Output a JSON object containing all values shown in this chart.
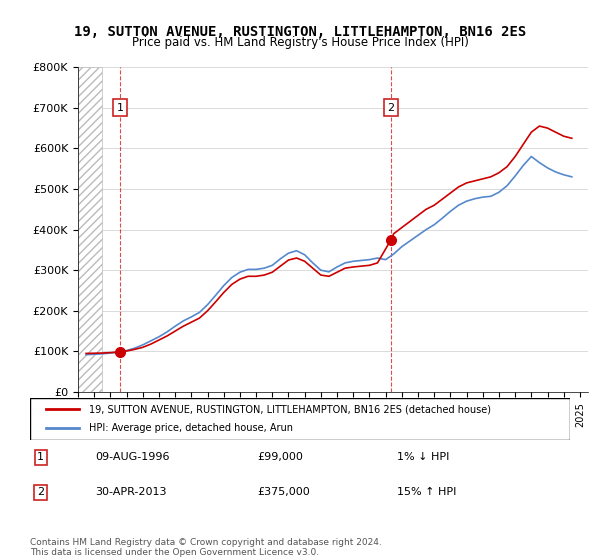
{
  "title": "19, SUTTON AVENUE, RUSTINGTON, LITTLEHAMPTON, BN16 2ES",
  "subtitle": "Price paid vs. HM Land Registry's House Price Index (HPI)",
  "ylabel": "",
  "xlabel": "",
  "ylim": [
    0,
    800000
  ],
  "yticks": [
    0,
    100000,
    200000,
    300000,
    400000,
    500000,
    600000,
    700000,
    800000
  ],
  "ytick_labels": [
    "£0",
    "£100K",
    "£200K",
    "£300K",
    "£400K",
    "£500K",
    "£600K",
    "£700K",
    "£800K"
  ],
  "xlim_start": 1994.0,
  "xlim_end": 2025.5,
  "hatch_end": 1995.5,
  "sale1_x": 1996.6,
  "sale1_y": 99000,
  "sale1_label": "1",
  "sale1_date": "09-AUG-1996",
  "sale1_price": "£99,000",
  "sale1_hpi": "1% ↓ HPI",
  "sale2_x": 2013.33,
  "sale2_y": 375000,
  "sale2_label": "2",
  "sale2_date": "30-APR-2013",
  "sale2_price": "£375,000",
  "sale2_hpi": "15% ↑ HPI",
  "line_color_property": "#cc0000",
  "line_color_hpi": "#5588cc",
  "marker_box_color": "#cc2222",
  "hatch_color": "#cccccc",
  "grid_color": "#cccccc",
  "bg_color": "#ffffff",
  "legend_label1": "19, SUTTON AVENUE, RUSTINGTON, LITTLEHAMPTON, BN16 2ES (detached house)",
  "legend_label2": "HPI: Average price, detached house, Arun",
  "footer": "Contains HM Land Registry data © Crown copyright and database right 2024.\nThis data is licensed under the Open Government Licence v3.0.",
  "property_x": [
    1994.5,
    1995.0,
    1995.5,
    1996.0,
    1996.6,
    1997.0,
    1997.5,
    1998.0,
    1998.5,
    1999.0,
    1999.5,
    2000.0,
    2000.5,
    2001.0,
    2001.5,
    2002.0,
    2002.5,
    2003.0,
    2003.5,
    2004.0,
    2004.5,
    2005.0,
    2005.5,
    2006.0,
    2006.5,
    2007.0,
    2007.5,
    2008.0,
    2008.5,
    2009.0,
    2009.5,
    2010.0,
    2010.5,
    2011.0,
    2011.5,
    2012.0,
    2012.5,
    2013.33,
    2013.5,
    2014.0,
    2014.5,
    2015.0,
    2015.5,
    2016.0,
    2016.5,
    2017.0,
    2017.5,
    2018.0,
    2018.5,
    2019.0,
    2019.5,
    2020.0,
    2020.5,
    2021.0,
    2021.5,
    2022.0,
    2022.5,
    2023.0,
    2023.5,
    2024.0,
    2024.5
  ],
  "property_y": [
    95000,
    95500,
    96000,
    97000,
    99000,
    101000,
    105000,
    110000,
    118000,
    128000,
    138000,
    150000,
    162000,
    172000,
    182000,
    200000,
    222000,
    245000,
    265000,
    278000,
    285000,
    285000,
    288000,
    295000,
    310000,
    325000,
    330000,
    322000,
    305000,
    288000,
    285000,
    295000,
    305000,
    308000,
    310000,
    312000,
    318000,
    375000,
    390000,
    405000,
    420000,
    435000,
    450000,
    460000,
    475000,
    490000,
    505000,
    515000,
    520000,
    525000,
    530000,
    540000,
    555000,
    580000,
    610000,
    640000,
    655000,
    650000,
    640000,
    630000,
    625000
  ],
  "hpi_x": [
    1994.5,
    1995.0,
    1995.5,
    1996.0,
    1996.5,
    1997.0,
    1997.5,
    1998.0,
    1998.5,
    1999.0,
    1999.5,
    2000.0,
    2000.5,
    2001.0,
    2001.5,
    2002.0,
    2002.5,
    2003.0,
    2003.5,
    2004.0,
    2004.5,
    2005.0,
    2005.5,
    2006.0,
    2006.5,
    2007.0,
    2007.5,
    2008.0,
    2008.5,
    2009.0,
    2009.5,
    2010.0,
    2010.5,
    2011.0,
    2011.5,
    2012.0,
    2012.5,
    2013.0,
    2013.5,
    2014.0,
    2014.5,
    2015.0,
    2015.5,
    2016.0,
    2016.5,
    2017.0,
    2017.5,
    2018.0,
    2018.5,
    2019.0,
    2019.5,
    2020.0,
    2020.5,
    2021.0,
    2021.5,
    2022.0,
    2022.5,
    2023.0,
    2023.5,
    2024.0,
    2024.5
  ],
  "hpi_y": [
    92000,
    93000,
    94000,
    96000,
    98000,
    102000,
    108000,
    116000,
    126000,
    136000,
    148000,
    162000,
    175000,
    185000,
    196000,
    215000,
    238000,
    262000,
    282000,
    295000,
    302000,
    302000,
    305000,
    312000,
    328000,
    342000,
    348000,
    338000,
    318000,
    300000,
    296000,
    308000,
    318000,
    322000,
    324000,
    326000,
    330000,
    326000,
    340000,
    358000,
    372000,
    386000,
    400000,
    412000,
    428000,
    445000,
    460000,
    470000,
    476000,
    480000,
    482000,
    492000,
    508000,
    532000,
    558000,
    580000,
    565000,
    552000,
    542000,
    535000,
    530000
  ]
}
